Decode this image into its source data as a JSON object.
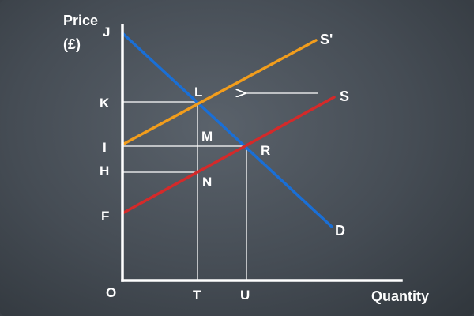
{
  "axes": {
    "y_label_line1": "Price",
    "y_label_line2": "(£)",
    "x_label": "Quantity",
    "origin": "O"
  },
  "price_labels": [
    "J",
    "K",
    "I",
    "H",
    "F"
  ],
  "quantity_labels": [
    "T",
    "U"
  ],
  "curve_labels": {
    "shifted_supply": "S'",
    "supply": "S",
    "demand": "D"
  },
  "point_labels": [
    "L",
    "M",
    "R",
    "N"
  ],
  "colors": {
    "demand": "#1a6fd6",
    "supply": "#d42a2a",
    "shifted_supply": "#f29d1c",
    "axes": "#ffffff",
    "guides": "#ffffff"
  },
  "arrow": "shift-left"
}
